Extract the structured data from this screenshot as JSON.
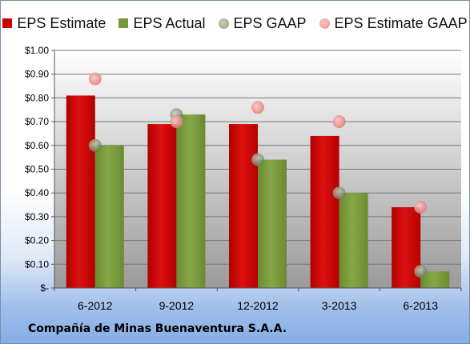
{
  "company": "Compañía de Minas Buenaventura S.A.A.",
  "colors": {
    "estimate": "#cc0000",
    "actual": "#77993a",
    "gaap": "#8c9a80",
    "estimate_gaap": "#ef8f8f",
    "plot_bg_top": "#ffffff",
    "plot_bg_bottom": "#9a9a9a"
  },
  "chart_data": {
    "type": "bar",
    "categories": [
      "6-2012",
      "9-2012",
      "12-2012",
      "3-2013",
      "6-2013"
    ],
    "series": [
      {
        "name": "EPS Estimate",
        "kind": "bar",
        "values": [
          0.81,
          0.69,
          0.69,
          0.64,
          0.34
        ]
      },
      {
        "name": "EPS Actual",
        "kind": "bar",
        "values": [
          0.6,
          0.73,
          0.54,
          0.4,
          0.07
        ]
      },
      {
        "name": "EPS GAAP",
        "kind": "marker",
        "values": [
          0.6,
          0.73,
          0.54,
          0.4,
          0.07
        ]
      },
      {
        "name": "EPS Estimate GAAP",
        "kind": "marker",
        "values": [
          0.88,
          0.7,
          0.76,
          0.7,
          0.34
        ]
      }
    ],
    "ylim": [
      0,
      1.0
    ],
    "yticks": [
      0,
      0.1,
      0.2,
      0.3,
      0.4,
      0.5,
      0.6,
      0.7,
      0.8,
      0.9,
      1.0
    ],
    "ytick_labels": [
      "$-",
      "$0.10",
      "$0.20",
      "$0.30",
      "$0.40",
      "$0.50",
      "$0.60",
      "$0.70",
      "$0.80",
      "$0.90",
      "$1.00"
    ],
    "grid": true,
    "legend": "top"
  }
}
